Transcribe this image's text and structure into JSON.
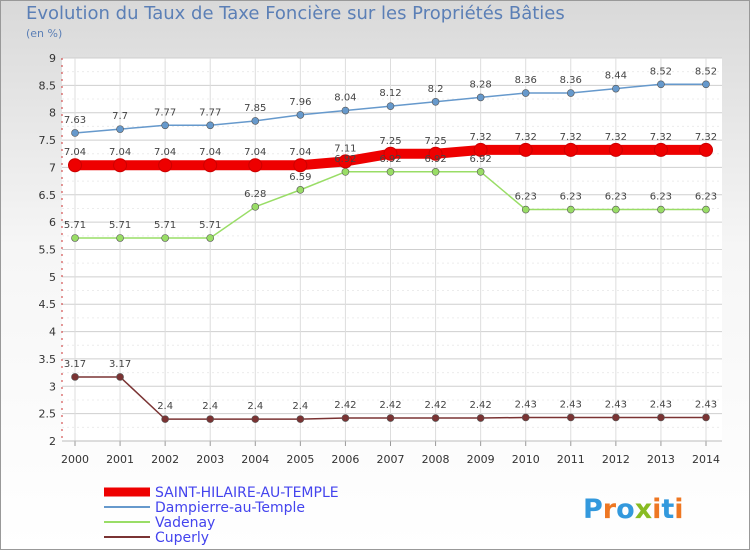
{
  "title": "Evolution du Taux de Taxe Foncière sur les Propriétés Bâties",
  "unit_label": "(en %)",
  "logo": "Proxiti",
  "chart_data": {
    "type": "line",
    "x": [
      "2000",
      "2001",
      "2002",
      "2003",
      "2004",
      "2005",
      "2006",
      "2007",
      "2008",
      "2009",
      "2010",
      "2011",
      "2012",
      "2013",
      "2014"
    ],
    "ylim": [
      2,
      9
    ],
    "yticks": [
      "2",
      "2.5",
      "3",
      "3.5",
      "4",
      "4.5",
      "5",
      "5.5",
      "6",
      "6.5",
      "7",
      "7.5",
      "8",
      "8.5",
      "9"
    ],
    "grid": true,
    "series": [
      {
        "name": "SAINT-HILAIRE-AU-TEMPLE",
        "color": "#ee0000",
        "values": [
          7.04,
          7.04,
          7.04,
          7.04,
          7.04,
          7.04,
          7.11,
          7.25,
          7.25,
          7.32,
          7.32,
          7.32,
          7.32,
          7.32,
          7.32
        ],
        "labels": [
          "7.04",
          "7.04",
          "7.04",
          "7.04",
          "7.04",
          "7.04",
          "7.11",
          "7.25",
          "7.25",
          "7.32",
          "7.32",
          "7.32",
          "7.32",
          "7.32",
          "7.32"
        ]
      },
      {
        "name": "Dampierre-au-Temple",
        "color": "#6699cc",
        "values": [
          7.63,
          7.7,
          7.77,
          7.77,
          7.85,
          7.96,
          8.04,
          8.12,
          8.2,
          8.28,
          8.36,
          8.36,
          8.44,
          8.52,
          8.52
        ],
        "labels": [
          "7.63",
          "7.7",
          "7.77",
          "7.77",
          "7.85",
          "7.96",
          "8.04",
          "8.12",
          "8.2",
          "8.28",
          "8.36",
          "8.36",
          "8.44",
          "8.52",
          "8.52"
        ]
      },
      {
        "name": "Vadenay",
        "color": "#99dd66",
        "values": [
          5.71,
          5.71,
          5.71,
          5.71,
          6.28,
          6.59,
          6.92,
          6.92,
          6.92,
          6.92,
          6.23,
          6.23,
          6.23,
          6.23,
          6.23
        ],
        "labels": [
          "5.71",
          "5.71",
          "5.71",
          "5.71",
          "6.28",
          "6.59",
          "6.92",
          "6.92",
          "6.92",
          "6.92",
          "6.23",
          "6.23",
          "6.23",
          "6.23",
          "6.23"
        ]
      },
      {
        "name": "Cuperly",
        "color": "#7a3333",
        "values": [
          3.17,
          3.17,
          2.4,
          2.4,
          2.4,
          2.4,
          2.42,
          2.42,
          2.42,
          2.42,
          2.43,
          2.43,
          2.43,
          2.43,
          2.43
        ],
        "labels": [
          "3.17",
          "3.17",
          "2.4",
          "2.4",
          "2.4",
          "2.4",
          "2.42",
          "2.42",
          "2.42",
          "2.42",
          "2.43",
          "2.43",
          "2.43",
          "2.43",
          "2.43"
        ]
      }
    ]
  }
}
